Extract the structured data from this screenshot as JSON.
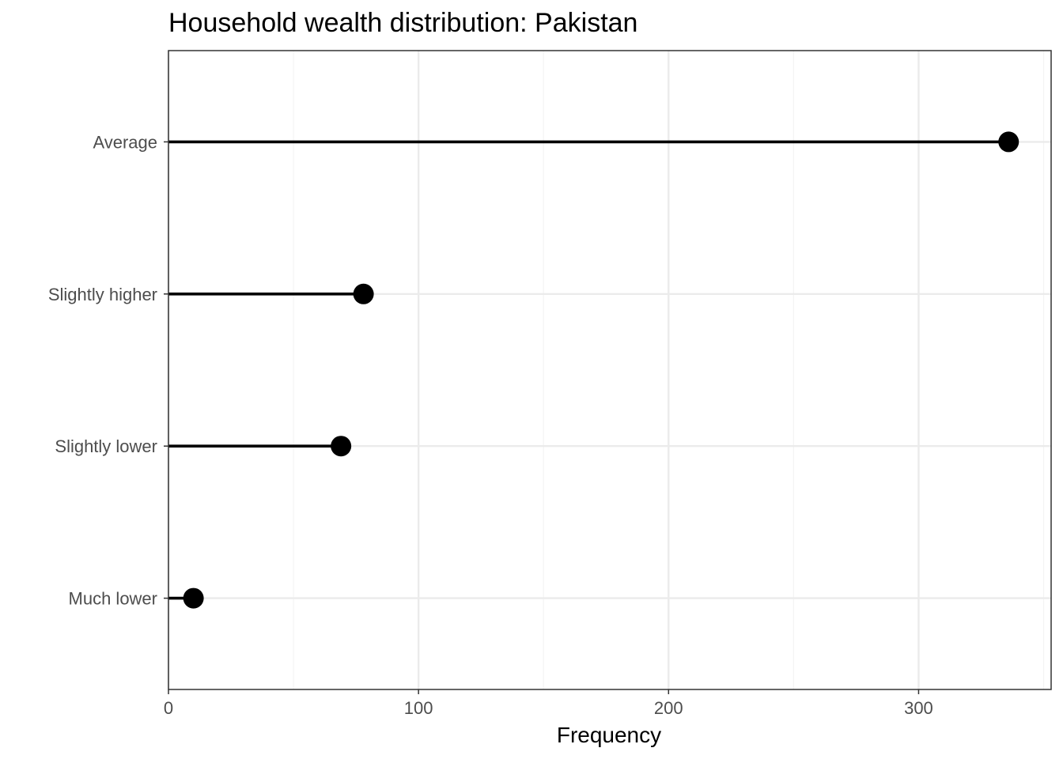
{
  "chart_data": {
    "type": "lollipop",
    "title": "Household wealth distribution: Pakistan",
    "xlabel": "Frequency",
    "ylabel": "",
    "categories": [
      "Much lower",
      "Slightly lower",
      "Slightly higher",
      "Average"
    ],
    "values": [
      10,
      69,
      78,
      336
    ],
    "xlim": [
      0,
      353
    ],
    "x_ticks": [
      0,
      100,
      200,
      300
    ],
    "x_minor_ticks": [
      50,
      150,
      250,
      350
    ],
    "orientation": "horizontal",
    "grid": true,
    "legend": "none",
    "colors": {
      "mark": "#000000",
      "grid_major": "#ebebeb",
      "grid_minor": "#f4f4f4",
      "panel_border": "#333333",
      "tick_text": "#4d4d4d"
    }
  }
}
